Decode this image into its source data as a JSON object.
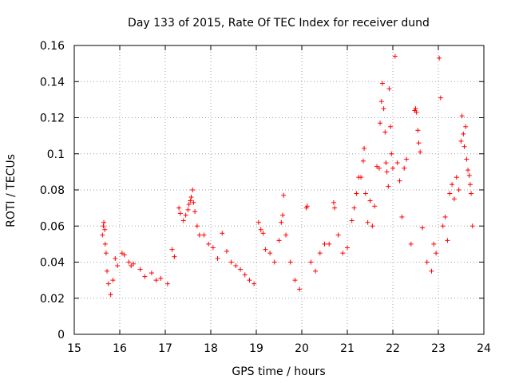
{
  "chart_data": {
    "type": "scatter",
    "title": "Day 133 of 2015, Rate Of TEC Index for receiver dund",
    "xlabel": "GPS time / hours",
    "ylabel": "ROTI / TECUs",
    "xlim": [
      15,
      24
    ],
    "ylim": [
      0,
      0.16
    ],
    "xticks": [
      15,
      16,
      17,
      18,
      19,
      20,
      21,
      22,
      23,
      24
    ],
    "xtick_labels": [
      "15",
      "16",
      "17",
      "18",
      "19",
      "20",
      "21",
      "22",
      "23",
      "24"
    ],
    "yticks": [
      0,
      0.02,
      0.04,
      0.06,
      0.08,
      0.1,
      0.12,
      0.14,
      0.16
    ],
    "ytick_labels": [
      "0",
      "0.02",
      "0.04",
      "0.06",
      "0.08",
      "0.1",
      "0.12",
      "0.14",
      "0.16"
    ],
    "grid": true,
    "marker": "+",
    "marker_color": "#ff0000",
    "series": [
      {
        "name": "ROTI",
        "points": [
          [
            15.62,
            0.055
          ],
          [
            15.64,
            0.06
          ],
          [
            15.65,
            0.062
          ],
          [
            15.67,
            0.058
          ],
          [
            15.68,
            0.05
          ],
          [
            15.7,
            0.045
          ],
          [
            15.72,
            0.035
          ],
          [
            15.75,
            0.028
          ],
          [
            15.8,
            0.022
          ],
          [
            15.85,
            0.03
          ],
          [
            15.9,
            0.042
          ],
          [
            15.95,
            0.038
          ],
          [
            16.05,
            0.045
          ],
          [
            16.1,
            0.044
          ],
          [
            16.2,
            0.04
          ],
          [
            16.25,
            0.038
          ],
          [
            16.3,
            0.039
          ],
          [
            16.45,
            0.036
          ],
          [
            16.55,
            0.032
          ],
          [
            16.7,
            0.034
          ],
          [
            16.8,
            0.03
          ],
          [
            16.9,
            0.031
          ],
          [
            17.05,
            0.028
          ],
          [
            17.15,
            0.047
          ],
          [
            17.2,
            0.043
          ],
          [
            17.3,
            0.07
          ],
          [
            17.33,
            0.067
          ],
          [
            17.4,
            0.063
          ],
          [
            17.45,
            0.066
          ],
          [
            17.5,
            0.069
          ],
          [
            17.52,
            0.072
          ],
          [
            17.55,
            0.074
          ],
          [
            17.57,
            0.076
          ],
          [
            17.6,
            0.08
          ],
          [
            17.62,
            0.073
          ],
          [
            17.65,
            0.068
          ],
          [
            17.7,
            0.06
          ],
          [
            17.75,
            0.055
          ],
          [
            17.85,
            0.055
          ],
          [
            17.95,
            0.05
          ],
          [
            18.05,
            0.048
          ],
          [
            18.15,
            0.042
          ],
          [
            18.25,
            0.056
          ],
          [
            18.35,
            0.046
          ],
          [
            18.45,
            0.04
          ],
          [
            18.55,
            0.038
          ],
          [
            18.65,
            0.036
          ],
          [
            18.75,
            0.033
          ],
          [
            18.85,
            0.03
          ],
          [
            18.95,
            0.028
          ],
          [
            19.05,
            0.062
          ],
          [
            19.1,
            0.058
          ],
          [
            19.15,
            0.056
          ],
          [
            19.2,
            0.047
          ],
          [
            19.3,
            0.045
          ],
          [
            19.4,
            0.04
          ],
          [
            19.5,
            0.052
          ],
          [
            19.55,
            0.062
          ],
          [
            19.58,
            0.066
          ],
          [
            19.6,
            0.077
          ],
          [
            19.65,
            0.055
          ],
          [
            19.75,
            0.04
          ],
          [
            19.85,
            0.03
          ],
          [
            19.95,
            0.025
          ],
          [
            20.1,
            0.07
          ],
          [
            20.12,
            0.071
          ],
          [
            20.2,
            0.04
          ],
          [
            20.3,
            0.035
          ],
          [
            20.4,
            0.045
          ],
          [
            20.5,
            0.05
          ],
          [
            20.6,
            0.05
          ],
          [
            20.7,
            0.073
          ],
          [
            20.72,
            0.07
          ],
          [
            20.8,
            0.055
          ],
          [
            20.9,
            0.045
          ],
          [
            21.0,
            0.048
          ],
          [
            21.1,
            0.063
          ],
          [
            21.15,
            0.07
          ],
          [
            21.2,
            0.078
          ],
          [
            21.25,
            0.087
          ],
          [
            21.3,
            0.087
          ],
          [
            21.35,
            0.096
          ],
          [
            21.37,
            0.103
          ],
          [
            21.4,
            0.078
          ],
          [
            21.45,
            0.062
          ],
          [
            21.5,
            0.074
          ],
          [
            21.55,
            0.06
          ],
          [
            21.6,
            0.071
          ],
          [
            21.65,
            0.093
          ],
          [
            21.7,
            0.092
          ],
          [
            21.72,
            0.117
          ],
          [
            21.75,
            0.129
          ],
          [
            21.77,
            0.139
          ],
          [
            21.8,
            0.125
          ],
          [
            21.83,
            0.112
          ],
          [
            21.85,
            0.095
          ],
          [
            21.87,
            0.09
          ],
          [
            21.9,
            0.082
          ],
          [
            21.92,
            0.136
          ],
          [
            21.95,
            0.115
          ],
          [
            21.97,
            0.1
          ],
          [
            22.0,
            0.092
          ],
          [
            22.05,
            0.154
          ],
          [
            22.1,
            0.095
          ],
          [
            22.15,
            0.085
          ],
          [
            22.2,
            0.065
          ],
          [
            22.25,
            0.092
          ],
          [
            22.3,
            0.097
          ],
          [
            22.4,
            0.05
          ],
          [
            22.48,
            0.124
          ],
          [
            22.5,
            0.125
          ],
          [
            22.52,
            0.123
          ],
          [
            22.55,
            0.113
          ],
          [
            22.57,
            0.106
          ],
          [
            22.6,
            0.101
          ],
          [
            22.65,
            0.059
          ],
          [
            22.75,
            0.04
          ],
          [
            22.85,
            0.035
          ],
          [
            22.9,
            0.05
          ],
          [
            22.95,
            0.045
          ],
          [
            23.02,
            0.153
          ],
          [
            23.05,
            0.131
          ],
          [
            23.1,
            0.06
          ],
          [
            23.15,
            0.065
          ],
          [
            23.2,
            0.052
          ],
          [
            23.25,
            0.078
          ],
          [
            23.3,
            0.083
          ],
          [
            23.35,
            0.075
          ],
          [
            23.4,
            0.087
          ],
          [
            23.45,
            0.08
          ],
          [
            23.5,
            0.107
          ],
          [
            23.52,
            0.121
          ],
          [
            23.55,
            0.111
          ],
          [
            23.57,
            0.104
          ],
          [
            23.6,
            0.115
          ],
          [
            23.62,
            0.097
          ],
          [
            23.65,
            0.091
          ],
          [
            23.68,
            0.088
          ],
          [
            23.7,
            0.083
          ],
          [
            23.72,
            0.078
          ],
          [
            23.75,
            0.06
          ]
        ]
      }
    ]
  }
}
